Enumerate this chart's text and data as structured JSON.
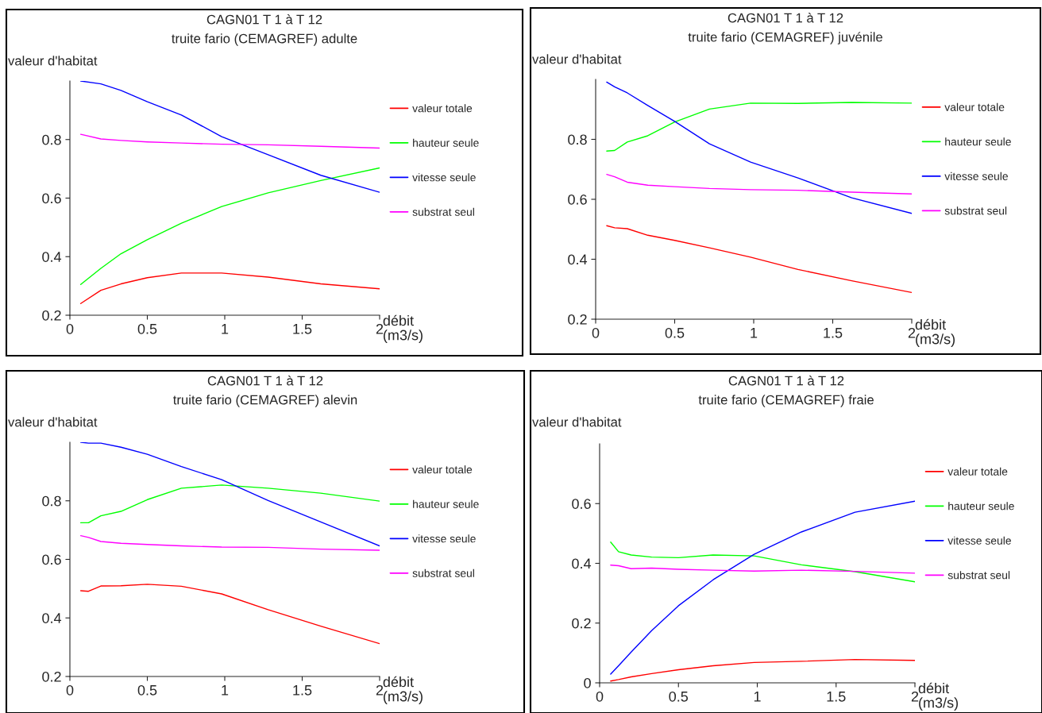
{
  "chart_data": [
    {
      "type": "line",
      "title": "CAGN01 T 1 à T 12",
      "subtitle": "truite fario (CEMAGREF) adulte",
      "xlabel": "débit (m3/s)",
      "ylabel": "valeur d'habitat",
      "x": [
        0.07,
        0.2,
        0.33,
        0.5,
        0.72,
        0.98,
        1.28,
        1.62,
        2.0
      ],
      "xlim": [
        0,
        2
      ],
      "xticks": [
        0,
        0.5,
        1,
        1.5,
        2
      ],
      "ylim": [
        0.2,
        1.0
      ],
      "yticks": [
        0.2,
        0.4,
        0.6,
        0.8
      ],
      "grid": false,
      "legend": "right",
      "marker": "none",
      "line_style": "solid",
      "series": [
        {
          "name": "valeur totale",
          "color": "#ff0000",
          "values": [
            0.24,
            0.285,
            0.307,
            0.328,
            0.344,
            0.344,
            0.33,
            0.307,
            0.29
          ]
        },
        {
          "name": "hauteur seule",
          "color": "#00ff00",
          "values": [
            0.305,
            0.36,
            0.41,
            0.458,
            0.514,
            0.571,
            0.618,
            0.66,
            0.703
          ]
        },
        {
          "name": "vitesse seule",
          "color": "#0000ff",
          "values": [
            1.0,
            0.99,
            0.968,
            0.929,
            0.884,
            0.81,
            0.748,
            0.678,
            0.62
          ]
        },
        {
          "name": "substrat seul",
          "color": "#ff00ff",
          "values": [
            0.818,
            0.802,
            0.797,
            0.792,
            0.788,
            0.784,
            0.782,
            0.777,
            0.771
          ]
        }
      ]
    },
    {
      "type": "line",
      "title": "CAGN01 T 1 à T 12",
      "subtitle": "truite fario (CEMAGREF) juvénile",
      "xlabel": "débit (m3/s)",
      "ylabel": "valeur d'habitat",
      "x": [
        0.07,
        0.12,
        0.2,
        0.33,
        0.5,
        0.72,
        0.98,
        1.28,
        1.62,
        2.0
      ],
      "xlim": [
        0,
        2
      ],
      "xticks": [
        0,
        0.5,
        1,
        1.5,
        2
      ],
      "ylim": [
        0.2,
        1.0
      ],
      "yticks": [
        0.2,
        0.4,
        0.6,
        0.8
      ],
      "grid": false,
      "legend": "right",
      "marker": "none",
      "line_style": "solid",
      "series": [
        {
          "name": "valeur totale",
          "color": "#ff0000",
          "values": [
            0.512,
            0.505,
            0.502,
            0.48,
            0.463,
            0.438,
            0.407,
            0.366,
            0.328,
            0.289
          ]
        },
        {
          "name": "hauteur seule",
          "color": "#00ff00",
          "values": [
            0.761,
            0.763,
            0.791,
            0.812,
            0.858,
            0.901,
            0.921,
            0.92,
            0.923,
            0.921
          ]
        },
        {
          "name": "vitesse seule",
          "color": "#0000ff",
          "values": [
            0.991,
            0.975,
            0.955,
            0.913,
            0.86,
            0.785,
            0.724,
            0.671,
            0.605,
            0.553
          ]
        },
        {
          "name": "substrat seul",
          "color": "#ff00ff",
          "values": [
            0.683,
            0.675,
            0.657,
            0.647,
            0.642,
            0.636,
            0.632,
            0.63,
            0.624,
            0.618
          ]
        }
      ]
    },
    {
      "type": "line",
      "title": "CAGN01 T 1 à T 12",
      "subtitle": "truite fario (CEMAGREF) alevin",
      "xlabel": "débit (m3/s)",
      "ylabel": "valeur d'habitat",
      "x": [
        0.07,
        0.12,
        0.2,
        0.33,
        0.5,
        0.72,
        0.98,
        1.28,
        1.62,
        2.0
      ],
      "xlim": [
        0,
        2
      ],
      "xticks": [
        0,
        0.5,
        1,
        1.5,
        2
      ],
      "ylim": [
        0.2,
        1.0
      ],
      "yticks": [
        0.2,
        0.4,
        0.6,
        0.8
      ],
      "grid": false,
      "legend": "right",
      "marker": "none",
      "line_style": "solid",
      "series": [
        {
          "name": "valeur totale",
          "color": "#ff0000",
          "values": [
            0.493,
            0.491,
            0.509,
            0.51,
            0.515,
            0.508,
            0.482,
            0.428,
            0.372,
            0.312
          ]
        },
        {
          "name": "hauteur seule",
          "color": "#00ff00",
          "values": [
            0.725,
            0.725,
            0.749,
            0.764,
            0.804,
            0.843,
            0.854,
            0.843,
            0.826,
            0.799
          ]
        },
        {
          "name": "vitesse seule",
          "color": "#0000ff",
          "values": [
            1.0,
            0.997,
            0.997,
            0.983,
            0.959,
            0.917,
            0.872,
            0.801,
            0.728,
            0.646
          ]
        },
        {
          "name": "substrat seul",
          "color": "#ff00ff",
          "values": [
            0.681,
            0.675,
            0.661,
            0.655,
            0.651,
            0.646,
            0.642,
            0.641,
            0.635,
            0.631
          ]
        }
      ]
    },
    {
      "type": "line",
      "title": "CAGN01 T 1 à T 12",
      "subtitle": "truite fario (CEMAGREF) fraie",
      "xlabel": "débit (m3/s)",
      "ylabel": "valeur d'habitat",
      "x": [
        0.07,
        0.12,
        0.2,
        0.33,
        0.5,
        0.72,
        0.98,
        1.28,
        1.62,
        2.0
      ],
      "xlim": [
        0,
        2
      ],
      "xticks": [
        0,
        0.5,
        1,
        1.5,
        2
      ],
      "ylim": [
        0,
        0.8
      ],
      "yticks": [
        0,
        0.2,
        0.4,
        0.6
      ],
      "grid": false,
      "legend": "right",
      "marker": "none",
      "line_style": "solid",
      "series": [
        {
          "name": "valeur totale",
          "color": "#ff0000",
          "values": [
            0.006,
            0.011,
            0.02,
            0.031,
            0.044,
            0.057,
            0.068,
            0.072,
            0.078,
            0.075
          ]
        },
        {
          "name": "hauteur seule",
          "color": "#00ff00",
          "values": [
            0.471,
            0.439,
            0.428,
            0.421,
            0.419,
            0.428,
            0.425,
            0.395,
            0.372,
            0.338
          ]
        },
        {
          "name": "vitesse seule",
          "color": "#0000ff",
          "values": [
            0.029,
            0.057,
            0.103,
            0.175,
            0.258,
            0.345,
            0.43,
            0.505,
            0.571,
            0.608
          ]
        },
        {
          "name": "substrat seul",
          "color": "#ff00ff",
          "values": [
            0.394,
            0.392,
            0.382,
            0.384,
            0.38,
            0.377,
            0.374,
            0.377,
            0.373,
            0.367
          ]
        }
      ]
    }
  ]
}
